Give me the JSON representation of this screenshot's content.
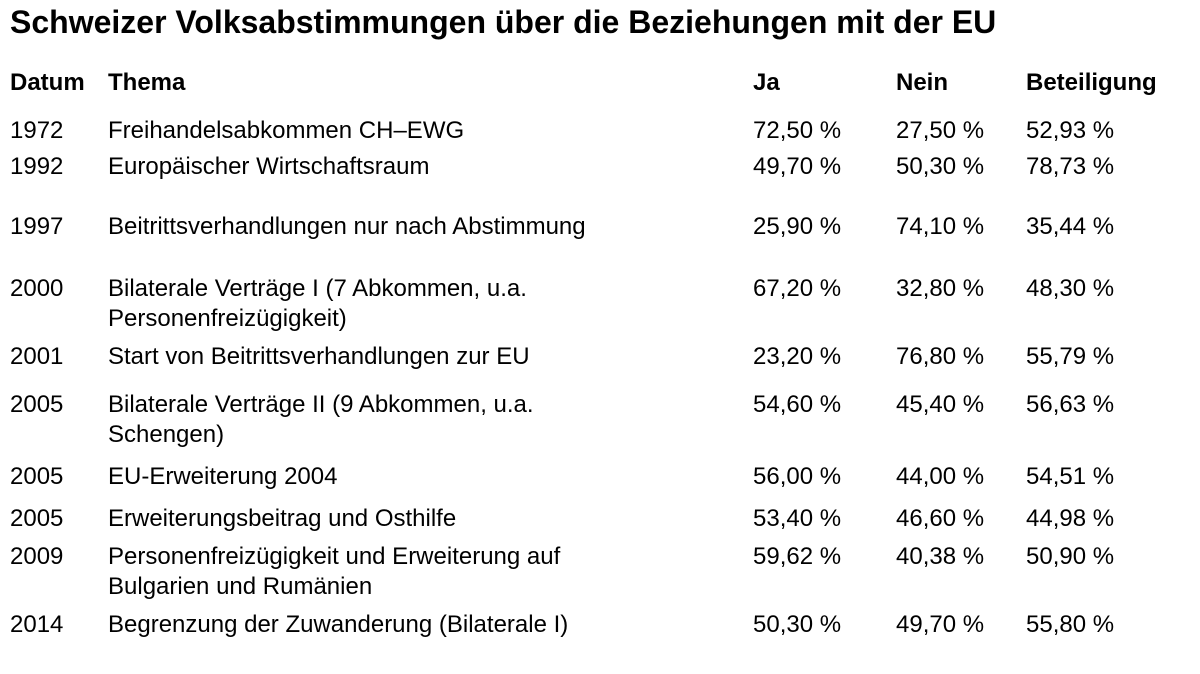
{
  "title": "Schweizer Volksabstimmungen über die Beziehungen mit der EU",
  "table": {
    "headers": [
      "Datum",
      "Thema",
      "Ja",
      "Nein",
      "Beteiligung"
    ],
    "rows": [
      {
        "datum": "1972",
        "thema": "Freihandelsabkommen CH–EWG",
        "ja": "72,50 %",
        "nein": "27,50 %",
        "beteiligung": "52,93 %",
        "highlight": false
      },
      {
        "datum": "1992",
        "thema": "Europäischer Wirtschaftsraum",
        "ja": "49,70 %",
        "nein": "50,30 %",
        "beteiligung": "78,73 %",
        "highlight": true
      },
      {
        "datum": "1997",
        "thema": "Beitrittsverhandlungen nur nach Abstimmung",
        "ja": "25,90 %",
        "nein": "74,10 %",
        "beteiligung": "35,44 %",
        "highlight": true
      },
      {
        "datum": "2000",
        "thema": "Bilaterale Verträge I (7 Abkommen, u.a. Personenfreizügigkeit)",
        "ja": "67,20 %",
        "nein": "32,80 %",
        "beteiligung": "48,30 %",
        "highlight": false
      },
      {
        "datum": "2001",
        "thema": "Start von Beitrittsverhandlungen zur EU",
        "ja": "23,20 %",
        "nein": "76,80 %",
        "beteiligung": "55,79 %",
        "highlight": true
      },
      {
        "datum": "2005",
        "thema": "Bilaterale Verträge II (9 Abkommen, u.a. Schengen)",
        "ja": "54,60 %",
        "nein": "45,40 %",
        "beteiligung": "56,63 %",
        "highlight": false
      },
      {
        "datum": "2005",
        "thema": "EU-Erweiterung 2004",
        "ja": "56,00 %",
        "nein": "44,00 %",
        "beteiligung": "54,51 %",
        "highlight": false
      },
      {
        "datum": "2005",
        "thema": "Erweiterungsbeitrag und Osthilfe",
        "ja": "53,40 %",
        "nein": "46,60 %",
        "beteiligung": "44,98 %",
        "highlight": false
      },
      {
        "datum": "2009",
        "thema": "Personenfreizügigkeit und Erweiterung auf Bulgarien und Rumänien",
        "ja": "59,62 %",
        "nein": "40,38 %",
        "beteiligung": "50,90 %",
        "highlight": false
      },
      {
        "datum": "2014",
        "thema": "Begrenzung der Zuwanderung (Bilaterale I)",
        "ja": "50,30 %",
        "nein": "49,70 %",
        "beteiligung": "55,80 %",
        "highlight": true
      }
    ]
  },
  "colors": {
    "highlight": "#f6a3a3",
    "text": "#000000",
    "background": "#ffffff"
  }
}
